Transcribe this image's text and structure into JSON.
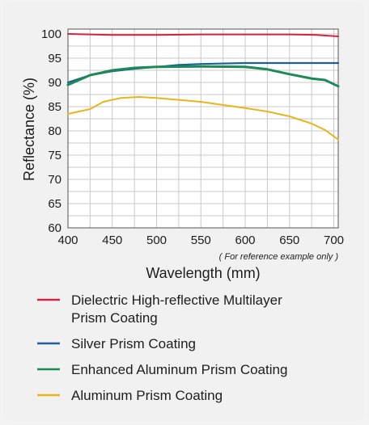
{
  "chart_data": {
    "type": "line",
    "title": "",
    "xlabel": "Wavelength (mm)",
    "ylabel": "Reflectance (%)",
    "note": "( For reference example only )",
    "xlim": [
      400,
      705
    ],
    "ylim": [
      60,
      101
    ],
    "xticks": [
      "400",
      "450",
      "500",
      "550",
      "600",
      "650",
      "700"
    ],
    "yticks": [
      "60",
      "65",
      "70",
      "75",
      "80",
      "85",
      "90",
      "95",
      "100"
    ],
    "grid": true,
    "legend_position": "bottom",
    "series": [
      {
        "name": "Dielectric High-reflective Multilayer Prism Coating",
        "color": "#d1243f",
        "x": [
          400,
          450,
          500,
          550,
          600,
          650,
          680,
          705
        ],
        "y": [
          100,
          99.8,
          99.8,
          99.9,
          99.9,
          99.9,
          99.8,
          99.5
        ]
      },
      {
        "name": "Silver Prism Coating",
        "color": "#1f5e96",
        "x": [
          400,
          425,
          450,
          475,
          500,
          525,
          550,
          600,
          650,
          705
        ],
        "y": [
          90,
          91.5,
          92.3,
          92.8,
          93.2,
          93.6,
          93.8,
          94.0,
          94.0,
          94.0
        ]
      },
      {
        "name": "Enhanced Aluminum Prism Coating",
        "color": "#1c8a54",
        "x": [
          400,
          425,
          450,
          475,
          500,
          550,
          600,
          625,
          650,
          675,
          690,
          705
        ],
        "y": [
          89.5,
          91.5,
          92.5,
          93.0,
          93.2,
          93.3,
          93.2,
          92.7,
          91.7,
          90.8,
          90.5,
          89.2
        ]
      },
      {
        "name": "Aluminum Prism Coating",
        "color": "#e9b51c",
        "x": [
          400,
          425,
          440,
          460,
          480,
          500,
          550,
          600,
          625,
          650,
          675,
          690,
          705
        ],
        "y": [
          83.5,
          84.5,
          86.0,
          86.8,
          87.0,
          86.8,
          86.0,
          84.7,
          84.0,
          83.0,
          81.5,
          80.2,
          78.2
        ]
      }
    ]
  }
}
